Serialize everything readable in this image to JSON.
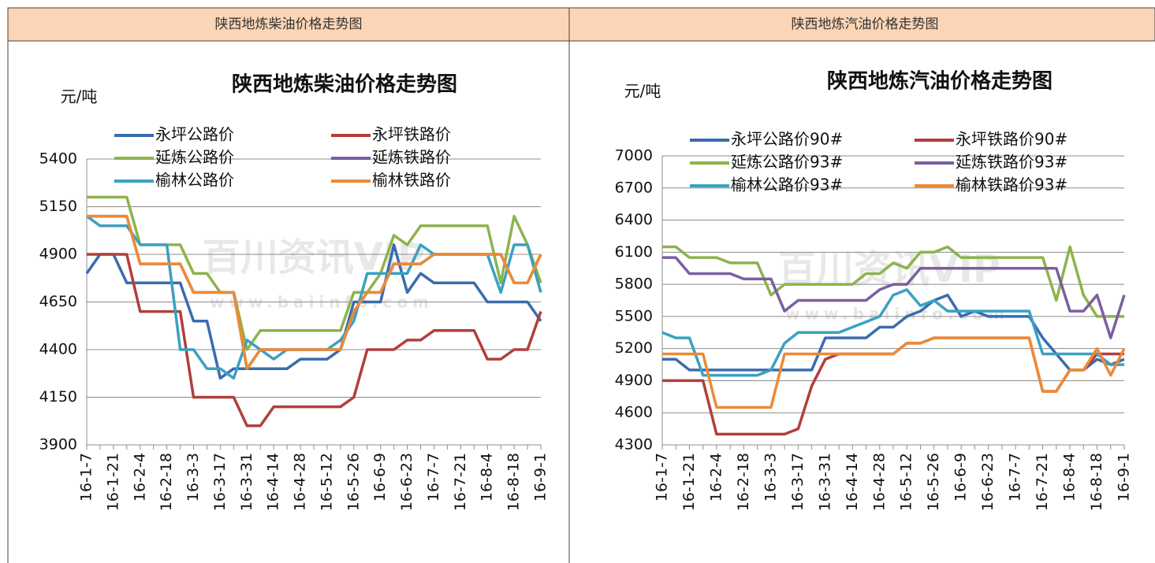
{
  "headers": [
    "陕西地炼柴油价格走势图",
    "陕西地炼汽油价格走势图"
  ],
  "chart_data": [
    {
      "type": "line",
      "title": "陕西地炼柴油价格走势图",
      "y_unit": "元/吨",
      "watermark": [
        "百川资讯VIP",
        "www.baiinfo.com"
      ],
      "categories": [
        "16-1-7",
        null,
        "16-1-21",
        null,
        "16-2-4",
        null,
        "16-2-18",
        null,
        "16-3-3",
        null,
        "16-3-17",
        null,
        "16-3-31",
        null,
        "16-4-14",
        null,
        "16-4-28",
        null,
        "16-5-12",
        null,
        "16-5-26",
        null,
        "16-6-9",
        null,
        "16-6-23",
        null,
        "16-7-7",
        null,
        "16-7-21",
        null,
        "16-8-4",
        null,
        "16-8-18",
        null,
        "16-9-1"
      ],
      "ylim": [
        3900,
        5400
      ],
      "yticks": [
        3900,
        4150,
        4400,
        4650,
        4900,
        5150,
        5400
      ],
      "grid": true,
      "series": [
        {
          "name": "永坪公路价",
          "color": "#3a6cae",
          "values": [
            4800,
            4900,
            4900,
            4750,
            4750,
            4750,
            4750,
            4750,
            4550,
            4550,
            4250,
            4300,
            4300,
            4300,
            4300,
            4300,
            4350,
            4350,
            4350,
            4400,
            4650,
            4650,
            4650,
            4950,
            4700,
            4800,
            4750,
            4750,
            4750,
            4750,
            4650,
            4650,
            4650,
            4650,
            4550
          ]
        },
        {
          "name": "永坪铁路价",
          "color": "#b13f3b",
          "values": [
            4900,
            4900,
            4900,
            4900,
            4600,
            4600,
            4600,
            4600,
            4150,
            4150,
            4150,
            4150,
            4000,
            4000,
            4100,
            4100,
            4100,
            4100,
            4100,
            4100,
            4150,
            4400,
            4400,
            4400,
            4450,
            4450,
            4500,
            4500,
            4500,
            4500,
            4350,
            4350,
            4400,
            4400,
            4600
          ]
        },
        {
          "name": "延炼公路价",
          "color": "#8db34c",
          "values": [
            5200,
            5200,
            5200,
            5200,
            4950,
            4950,
            4950,
            4950,
            4800,
            4800,
            4700,
            4700,
            4400,
            4500,
            4500,
            4500,
            4500,
            4500,
            4500,
            4500,
            4700,
            4700,
            4800,
            5000,
            4950,
            5050,
            5050,
            5050,
            5050,
            5050,
            5050,
            4750,
            5100,
            4950,
            4750
          ]
        },
        {
          "name": "延炼铁路价",
          "color": "#7a5fa1",
          "values": [
            5100,
            5100,
            5100,
            5100,
            4850,
            4850,
            4850,
            4850,
            4700,
            4700,
            4700,
            4700,
            4300,
            4400,
            4400,
            4400,
            4400,
            4400,
            4400,
            4400,
            4600,
            4700,
            4700,
            4850,
            4850,
            4850,
            4900,
            4900,
            4900,
            4900,
            4900,
            4900,
            4750,
            4750,
            4900
          ]
        },
        {
          "name": "榆林公路价",
          "color": "#3ba1c1",
          "values": [
            5100,
            5050,
            5050,
            5050,
            4950,
            4950,
            4950,
            4400,
            4400,
            4300,
            4300,
            4250,
            4450,
            4400,
            4350,
            4400,
            4400,
            4400,
            4400,
            4450,
            4550,
            4800,
            4800,
            4800,
            4800,
            4950,
            4900,
            4900,
            4900,
            4900,
            4900,
            4700,
            4950,
            4950,
            4700
          ]
        },
        {
          "name": "榆林铁路价",
          "color": "#ee8a35",
          "values": [
            5100,
            5100,
            5100,
            5100,
            4850,
            4850,
            4850,
            4850,
            4700,
            4700,
            4700,
            4700,
            4300,
            4400,
            4400,
            4400,
            4400,
            4400,
            4400,
            4400,
            4600,
            4700,
            4700,
            4850,
            4850,
            4850,
            4900,
            4900,
            4900,
            4900,
            4900,
            4900,
            4750,
            4750,
            4900
          ]
        }
      ]
    },
    {
      "type": "line",
      "title": "陕西地炼汽油价格走势图",
      "y_unit": "元/吨",
      "watermark": [
        "百川资讯VIP",
        "www.baiinfo.com"
      ],
      "categories": [
        "16-1-7",
        null,
        "16-1-21",
        null,
        "16-2-4",
        null,
        "16-2-18",
        null,
        "16-3-3",
        null,
        "16-3-17",
        null,
        "16-3-31",
        null,
        "16-4-14",
        null,
        "16-4-28",
        null,
        "16-5-12",
        null,
        "16-5-26",
        null,
        "16-6-9",
        null,
        "16-6-23",
        null,
        "16-7-7",
        null,
        "16-7-21",
        null,
        "16-8-4",
        null,
        "16-8-18",
        null,
        "16-9-1"
      ],
      "ylim": [
        4300,
        7000
      ],
      "yticks": [
        4300,
        4600,
        4900,
        5200,
        5500,
        5800,
        6100,
        6400,
        6700,
        7000
      ],
      "grid": true,
      "series": [
        {
          "name": "永坪公路价90#",
          "color": "#3a6cae",
          "values": [
            5100,
            5100,
            5000,
            5000,
            5000,
            5000,
            5000,
            5000,
            5000,
            5000,
            5000,
            5000,
            5300,
            5300,
            5300,
            5300,
            5400,
            5400,
            5500,
            5550,
            5650,
            5700,
            5500,
            5550,
            5500,
            5500,
            5500,
            5500,
            5300,
            5150,
            5000,
            5000,
            5100,
            5050,
            5100
          ]
        },
        {
          "name": "永坪铁路价90#",
          "color": "#b13f3b",
          "values": [
            4900,
            4900,
            4900,
            4900,
            4400,
            4400,
            4400,
            4400,
            4400,
            4400,
            4450,
            4850,
            5100,
            5150,
            5150,
            5150,
            5150,
            5150,
            5250,
            5250,
            5300,
            5300,
            5300,
            5300,
            5300,
            5300,
            5300,
            5300,
            4800,
            4800,
            5000,
            5000,
            5150,
            5150,
            5150
          ]
        },
        {
          "name": "延炼公路价93#",
          "color": "#8db34c",
          "values": [
            6150,
            6150,
            6050,
            6050,
            6050,
            6000,
            6000,
            6000,
            5700,
            5800,
            5800,
            5800,
            5800,
            5800,
            5800,
            5900,
            5900,
            6000,
            5950,
            6100,
            6100,
            6150,
            6050,
            6050,
            6050,
            6050,
            6050,
            6050,
            6050,
            5650,
            6150,
            5700,
            5500,
            5500,
            5500
          ]
        },
        {
          "name": "延炼铁路价93#",
          "color": "#7a5fa1",
          "values": [
            6050,
            6050,
            5900,
            5900,
            5900,
            5900,
            5850,
            5850,
            5850,
            5550,
            5650,
            5650,
            5650,
            5650,
            5650,
            5650,
            5750,
            5800,
            5800,
            5950,
            5950,
            5950,
            5950,
            5950,
            5950,
            5950,
            5950,
            5950,
            5950,
            5950,
            5550,
            5550,
            5700,
            5300,
            5700
          ]
        },
        {
          "name": "榆林公路价93#",
          "color": "#3ba1c1",
          "values": [
            5350,
            5300,
            5300,
            4950,
            4950,
            4950,
            4950,
            4950,
            5000,
            5250,
            5350,
            5350,
            5350,
            5350,
            5400,
            5450,
            5500,
            5700,
            5750,
            5600,
            5650,
            5550,
            5550,
            5550,
            5550,
            5550,
            5550,
            5550,
            5150,
            5150,
            5150,
            5150,
            5150,
            5050,
            5050
          ]
        },
        {
          "name": "榆林铁路价93#",
          "color": "#ee8a35",
          "values": [
            5150,
            5150,
            5150,
            5150,
            4650,
            4650,
            4650,
            4650,
            4650,
            5150,
            5150,
            5150,
            5150,
            5150,
            5150,
            5150,
            5150,
            5150,
            5250,
            5250,
            5300,
            5300,
            5300,
            5300,
            5300,
            5300,
            5300,
            5300,
            4800,
            4800,
            5000,
            5000,
            5200,
            4950,
            5200
          ]
        }
      ]
    }
  ]
}
